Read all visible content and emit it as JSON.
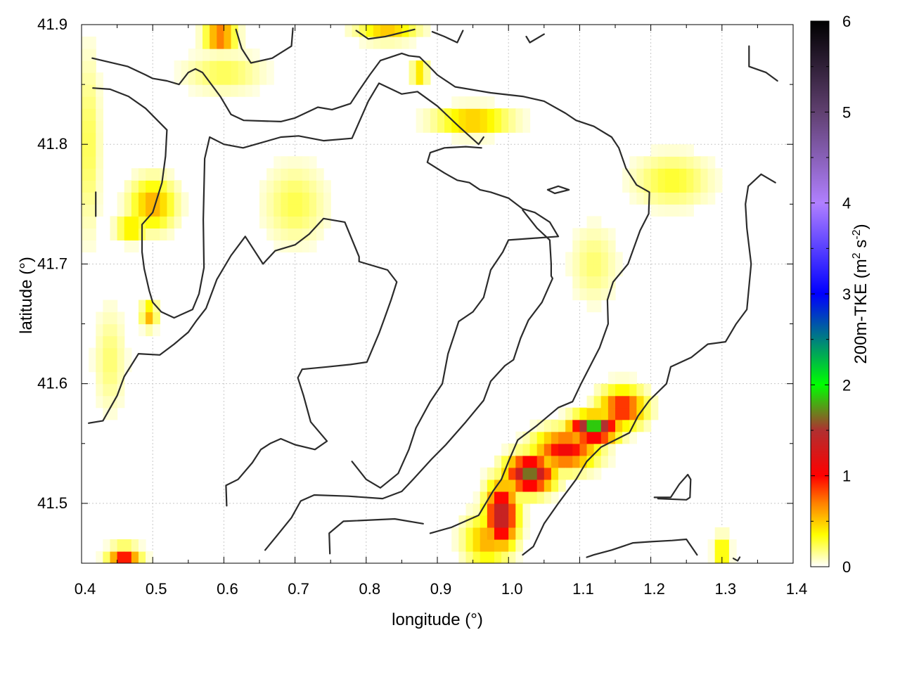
{
  "chart_data": {
    "type": "heatmap",
    "title": "",
    "xlabel": "longitude (°)",
    "ylabel": "latitude (°)",
    "xlim": [
      0.4,
      1.4
    ],
    "ylim": [
      41.45,
      41.9
    ],
    "xticks": [
      "0.4",
      "0.5",
      "0.6",
      "0.7",
      "0.8",
      "0.9",
      "1.0",
      "1.1",
      "1.2",
      "1.3",
      "1.4"
    ],
    "yticks": [
      "41.5",
      "41.6",
      "41.7",
      "41.8",
      "41.9"
    ],
    "grid": true,
    "colorbar": {
      "label": "200m-TKE (m",
      "label_sup1": "2",
      "label_mid": " s",
      "label_sup2": "-2",
      "label_end": ")",
      "range": [
        0,
        6
      ],
      "ticks": [
        "0",
        "1",
        "2",
        "3",
        "4",
        "5",
        "6"
      ],
      "stops": [
        {
          "value": 0,
          "color": "#ffffff"
        },
        {
          "value": 0.35,
          "color": "#ffff00"
        },
        {
          "value": 0.7,
          "color": "#ff8000"
        },
        {
          "value": 1.0,
          "color": "#ff0000"
        },
        {
          "value": 1.5,
          "color": "#b03030"
        },
        {
          "value": 2.0,
          "color": "#00ff00"
        },
        {
          "value": 3.0,
          "color": "#0000ff"
        },
        {
          "value": 4.0,
          "color": "#b080ff"
        },
        {
          "value": 5.0,
          "color": "#604070"
        },
        {
          "value": 6.0,
          "color": "#000000"
        }
      ]
    },
    "tke_blobs": [
      {
        "lon": 0.99,
        "lat": 41.49,
        "value": 1.5,
        "rlon": 0.02,
        "rlat": 0.025
      },
      {
        "lon": 1.03,
        "lat": 41.525,
        "value": 1.7,
        "rlon": 0.03,
        "rlat": 0.014
      },
      {
        "lon": 1.08,
        "lat": 41.545,
        "value": 1.1,
        "rlon": 0.04,
        "rlat": 0.015
      },
      {
        "lon": 1.12,
        "lat": 41.563,
        "value": 2.0,
        "rlon": 0.03,
        "rlat": 0.01
      },
      {
        "lon": 1.16,
        "lat": 41.58,
        "value": 1.0,
        "rlon": 0.03,
        "rlat": 0.015
      },
      {
        "lon": 0.97,
        "lat": 41.47,
        "value": 0.6,
        "rlon": 0.03,
        "rlat": 0.02
      },
      {
        "lon": 0.46,
        "lat": 41.455,
        "value": 1.0,
        "rlon": 0.02,
        "rlat": 0.008
      },
      {
        "lon": 0.595,
        "lat": 41.89,
        "value": 0.9,
        "rlon": 0.02,
        "rlat": 0.01
      },
      {
        "lon": 0.83,
        "lat": 41.895,
        "value": 0.5,
        "rlon": 0.04,
        "rlat": 0.008
      },
      {
        "lon": 0.875,
        "lat": 41.86,
        "value": 0.6,
        "rlon": 0.01,
        "rlat": 0.008
      },
      {
        "lon": 0.95,
        "lat": 41.82,
        "value": 0.6,
        "rlon": 0.05,
        "rlat": 0.01
      },
      {
        "lon": 0.5,
        "lat": 41.75,
        "value": 0.6,
        "rlon": 0.03,
        "rlat": 0.02
      },
      {
        "lon": 0.47,
        "lat": 41.73,
        "value": 0.5,
        "rlon": 0.02,
        "rlat": 0.01
      },
      {
        "lon": 0.495,
        "lat": 41.658,
        "value": 0.6,
        "rlon": 0.01,
        "rlat": 0.01
      },
      {
        "lon": 1.3,
        "lat": 41.46,
        "value": 0.5,
        "rlon": 0.01,
        "rlat": 0.012
      },
      {
        "lon": 1.23,
        "lat": 41.77,
        "value": 0.3,
        "rlon": 0.05,
        "rlat": 0.02
      },
      {
        "lon": 0.41,
        "lat": 41.8,
        "value": 0.25,
        "rlon": 0.015,
        "rlat": 0.07
      },
      {
        "lon": 0.7,
        "lat": 41.75,
        "value": 0.25,
        "rlon": 0.04,
        "rlat": 0.03
      },
      {
        "lon": 0.6,
        "lat": 41.86,
        "value": 0.25,
        "rlon": 0.05,
        "rlat": 0.015
      },
      {
        "lon": 0.44,
        "lat": 41.62,
        "value": 0.2,
        "rlon": 0.02,
        "rlat": 0.04
      },
      {
        "lon": 1.12,
        "lat": 41.7,
        "value": 0.2,
        "rlon": 0.03,
        "rlat": 0.03
      }
    ],
    "contours": [
      [
        [
          0.415,
          41.872
        ],
        [
          0.465,
          41.865
        ],
        [
          0.49,
          41.858
        ],
        [
          0.5,
          41.855
        ],
        [
          0.52,
          41.853
        ],
        [
          0.537,
          41.85
        ],
        [
          0.55,
          41.86
        ],
        [
          0.56,
          41.863
        ],
        [
          0.57,
          41.86
        ],
        [
          0.595,
          41.84
        ],
        [
          0.61,
          41.825
        ],
        [
          0.628,
          41.82
        ],
        [
          0.68,
          41.819
        ],
        [
          0.7,
          41.822
        ],
        [
          0.732,
          41.831
        ],
        [
          0.752,
          41.829
        ],
        [
          0.778,
          41.834
        ],
        [
          0.79,
          41.845
        ],
        [
          0.805,
          41.858
        ],
        [
          0.82,
          41.87
        ],
        [
          0.83,
          41.872
        ],
        [
          0.85,
          41.876
        ],
        [
          0.86,
          41.874
        ],
        [
          0.875,
          41.873
        ],
        [
          0.887,
          41.866
        ],
        [
          0.9,
          41.858
        ],
        [
          0.925,
          41.848
        ],
        [
          0.975,
          41.843
        ],
        [
          1.02,
          41.84
        ],
        [
          1.05,
          41.836
        ],
        [
          1.08,
          41.826
        ],
        [
          1.095,
          41.82
        ],
        [
          1.12,
          41.815
        ],
        [
          1.145,
          41.806
        ],
        [
          1.155,
          41.797
        ],
        [
          1.165,
          41.78
        ],
        [
          1.18,
          41.766
        ],
        [
          1.198,
          41.76
        ],
        [
          1.197,
          41.742
        ],
        [
          1.185,
          41.728
        ],
        [
          1.168,
          41.7
        ],
        [
          1.147,
          41.685
        ],
        [
          1.139,
          41.67
        ],
        [
          1.14,
          41.65
        ],
        [
          1.128,
          41.63
        ],
        [
          1.102,
          41.6
        ],
        [
          1.09,
          41.585
        ],
        [
          1.07,
          41.58
        ],
        [
          1.04,
          41.565
        ],
        [
          1.013,
          41.553
        ],
        [
          1.0,
          41.535
        ],
        [
          0.99,
          41.52
        ],
        [
          0.978,
          41.51
        ],
        [
          0.958,
          41.49
        ],
        [
          0.92,
          41.48
        ],
        [
          0.89,
          41.475
        ]
      ],
      [
        [
          0.416,
          41.847
        ],
        [
          0.44,
          41.846
        ],
        [
          0.466,
          41.84
        ],
        [
          0.49,
          41.83
        ],
        [
          0.52,
          41.812
        ],
        [
          0.518,
          41.79
        ],
        [
          0.513,
          41.768
        ],
        [
          0.5,
          41.743
        ],
        [
          0.485,
          41.733
        ],
        [
          0.485,
          41.71
        ],
        [
          0.488,
          41.696
        ],
        [
          0.495,
          41.678
        ],
        [
          0.5,
          41.668
        ],
        [
          0.512,
          41.66
        ],
        [
          0.53,
          41.655
        ],
        [
          0.556,
          41.662
        ],
        [
          0.565,
          41.675
        ],
        [
          0.572,
          41.697
        ],
        [
          0.571,
          41.737
        ],
        [
          0.573,
          41.788
        ],
        [
          0.58,
          41.806
        ],
        [
          0.6,
          41.8
        ],
        [
          0.627,
          41.797
        ],
        [
          0.68,
          41.806
        ],
        [
          0.705,
          41.807
        ],
        [
          0.74,
          41.803
        ],
        [
          0.78,
          41.805
        ],
        [
          0.803,
          41.836
        ],
        [
          0.818,
          41.851
        ],
        [
          0.85,
          41.842
        ],
        [
          0.872,
          41.844
        ],
        [
          0.9,
          41.832
        ],
        [
          0.93,
          41.815
        ],
        [
          0.958,
          41.8
        ],
        [
          0.965,
          41.806
        ]
      ],
      [
        [
          0.962,
          41.797
        ],
        [
          0.94,
          41.798
        ],
        [
          0.91,
          41.797
        ],
        [
          0.89,
          41.793
        ],
        [
          0.886,
          41.785
        ],
        [
          0.91,
          41.776
        ],
        [
          0.928,
          41.77
        ],
        [
          0.945,
          41.768
        ],
        [
          0.96,
          41.762
        ],
        [
          0.975,
          41.76
        ],
        [
          1.0,
          41.755
        ],
        [
          1.02,
          41.746
        ],
        [
          1.037,
          41.743
        ],
        [
          1.058,
          41.735
        ],
        [
          1.07,
          41.723
        ],
        [
          1.0,
          41.72
        ],
        [
          0.992,
          41.71
        ],
        [
          0.975,
          41.695
        ],
        [
          0.965,
          41.672
        ],
        [
          0.95,
          41.66
        ],
        [
          0.93,
          41.652
        ],
        [
          0.915,
          41.625
        ],
        [
          0.907,
          41.6
        ],
        [
          0.89,
          41.585
        ],
        [
          0.87,
          41.563
        ],
        [
          0.86,
          41.545
        ],
        [
          0.845,
          41.525
        ],
        [
          0.82,
          41.513
        ],
        [
          0.8,
          41.52
        ],
        [
          0.78,
          41.535
        ]
      ],
      [
        [
          0.41,
          41.567
        ],
        [
          0.43,
          41.569
        ],
        [
          0.45,
          41.59
        ],
        [
          0.46,
          41.606
        ],
        [
          0.48,
          41.625
        ],
        [
          0.51,
          41.624
        ],
        [
          0.53,
          41.633
        ],
        [
          0.55,
          41.643
        ],
        [
          0.562,
          41.653
        ],
        [
          0.575,
          41.663
        ],
        [
          0.59,
          41.687
        ],
        [
          0.61,
          41.707
        ],
        [
          0.63,
          41.723
        ],
        [
          0.655,
          41.7
        ],
        [
          0.672,
          41.711
        ],
        [
          0.7,
          41.716
        ],
        [
          0.72,
          41.725
        ],
        [
          0.74,
          41.738
        ],
        [
          0.77,
          41.735
        ],
        [
          0.79,
          41.706
        ],
        [
          0.79,
          41.702
        ],
        [
          0.83,
          41.695
        ],
        [
          0.843,
          41.685
        ],
        [
          0.835,
          41.67
        ],
        [
          0.826,
          41.655
        ],
        [
          0.818,
          41.642
        ],
        [
          0.801,
          41.618
        ],
        [
          0.778,
          41.616
        ],
        [
          0.745,
          41.614
        ],
        [
          0.71,
          41.612
        ],
        [
          0.704,
          41.605
        ],
        [
          0.712,
          41.59
        ],
        [
          0.722,
          41.568
        ],
        [
          0.745,
          41.552
        ],
        [
          0.728,
          41.545
        ],
        [
          0.7,
          41.549
        ],
        [
          0.68,
          41.554
        ],
        [
          0.665,
          41.55
        ],
        [
          0.652,
          41.545
        ],
        [
          0.64,
          41.534
        ],
        [
          0.62,
          41.52
        ],
        [
          0.603,
          41.515
        ],
        [
          0.604,
          41.498
        ]
      ],
      [
        [
          0.658,
          41.461
        ],
        [
          0.676,
          41.474
        ],
        [
          0.695,
          41.488
        ],
        [
          0.708,
          41.502
        ],
        [
          0.727,
          41.507
        ],
        [
          0.775,
          41.506
        ],
        [
          0.823,
          41.504
        ],
        [
          0.85,
          41.51
        ],
        [
          0.866,
          41.52
        ],
        [
          0.892,
          41.537
        ],
        [
          0.912,
          41.549
        ],
        [
          0.94,
          41.568
        ],
        [
          0.965,
          41.586
        ],
        [
          0.975,
          41.602
        ],
        [
          0.995,
          41.615
        ],
        [
          1.007,
          41.62
        ],
        [
          1.017,
          41.638
        ],
        [
          1.028,
          41.653
        ],
        [
          1.047,
          41.668
        ],
        [
          1.062,
          41.688
        ],
        [
          1.06,
          41.69
        ],
        [
          1.06,
          41.7
        ],
        [
          1.058,
          41.72
        ],
        [
          1.04,
          41.73
        ],
        [
          1.02,
          41.745
        ]
      ],
      [
        [
          1.02,
          41.457
        ],
        [
          1.035,
          41.464
        ],
        [
          1.05,
          41.483
        ],
        [
          1.07,
          41.5
        ],
        [
          1.095,
          41.52
        ],
        [
          1.11,
          41.535
        ],
        [
          1.13,
          41.547
        ],
        [
          1.17,
          41.559
        ],
        [
          1.182,
          41.573
        ],
        [
          1.198,
          41.586
        ],
        [
          1.222,
          41.6
        ],
        [
          1.228,
          41.614
        ],
        [
          1.257,
          41.622
        ],
        [
          1.28,
          41.633
        ],
        [
          1.305,
          41.635
        ],
        [
          1.32,
          41.65
        ],
        [
          1.335,
          41.662
        ],
        [
          1.341,
          41.7
        ],
        [
          1.335,
          41.73
        ],
        [
          1.333,
          41.75
        ],
        [
          1.337,
          41.765
        ],
        [
          1.355,
          41.775
        ],
        [
          1.375,
          41.768
        ]
      ],
      [
        [
          1.11,
          41.455
        ],
        [
          1.12,
          41.457
        ],
        [
          1.145,
          41.461
        ],
        [
          1.175,
          41.467
        ],
        [
          1.2,
          41.468
        ],
        [
          1.23,
          41.469
        ],
        [
          1.25,
          41.47
        ],
        [
          1.265,
          41.457
        ]
      ],
      [
        [
          1.205,
          41.505
        ],
        [
          1.228,
          41.505
        ],
        [
          1.24,
          41.516
        ],
        [
          1.252,
          41.524
        ],
        [
          1.256,
          41.52
        ],
        [
          1.255,
          41.505
        ],
        [
          1.25,
          41.503
        ],
        [
          1.21,
          41.504
        ]
      ],
      [
        [
          1.055,
          41.762
        ],
        [
          1.07,
          41.765
        ],
        [
          1.085,
          41.762
        ],
        [
          1.065,
          41.759
        ],
        [
          1.055,
          41.762
        ]
      ],
      [
        [
          0.617,
          41.896
        ],
        [
          0.625,
          41.88
        ],
        [
          0.638,
          41.868
        ],
        [
          0.668,
          41.872
        ],
        [
          0.695,
          41.882
        ],
        [
          0.697,
          41.897
        ]
      ],
      [
        [
          0.786,
          41.895
        ],
        [
          0.803,
          41.888
        ],
        [
          0.827,
          41.89
        ],
        [
          0.868,
          41.896
        ]
      ],
      [
        [
          0.893,
          41.894
        ],
        [
          0.91,
          41.89
        ],
        [
          0.928,
          41.885
        ],
        [
          0.936,
          41.895
        ]
      ],
      [
        [
          1.025,
          41.89
        ],
        [
          1.03,
          41.885
        ],
        [
          1.05,
          41.892
        ]
      ],
      [
        [
          0.42,
          41.76
        ],
        [
          0.42,
          41.745
        ],
        [
          0.42,
          41.74
        ]
      ],
      [
        [
          1.338,
          41.882
        ],
        [
          1.338,
          41.865
        ],
        [
          1.362,
          41.86
        ],
        [
          1.378,
          41.853
        ]
      ],
      [
        [
          0.749,
          41.458
        ],
        [
          0.748,
          41.475
        ],
        [
          0.768,
          41.485
        ],
        [
          0.84,
          41.487
        ],
        [
          0.88,
          41.483
        ]
      ],
      [
        [
          1.316,
          41.454
        ],
        [
          1.322,
          41.452
        ],
        [
          1.325,
          41.455
        ]
      ]
    ]
  }
}
